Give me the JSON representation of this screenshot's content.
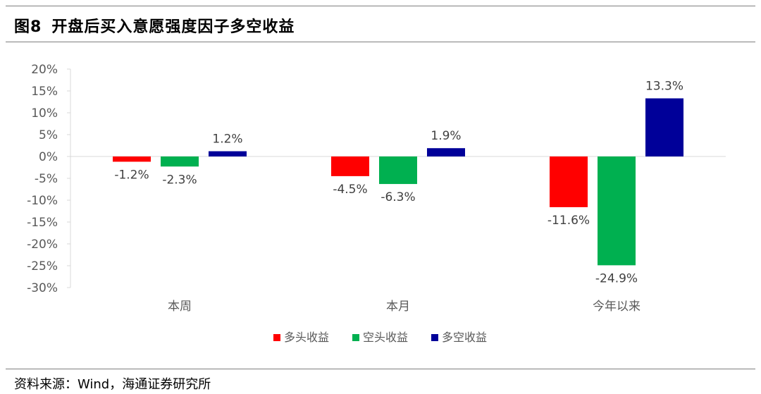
{
  "header": {
    "figure_no": "图8",
    "title": "开盘后买入意愿强度因子多空收益"
  },
  "source": "资料来源：Wind，海通证券研究所",
  "chart_data": {
    "type": "bar",
    "title": "开盘后买入意愿强度因子多空收益",
    "categories": [
      "本周",
      "本月",
      "今年以来"
    ],
    "series": [
      {
        "name": "多头收益",
        "color": "#ff0000",
        "values": [
          -1.2,
          -4.5,
          -11.6
        ],
        "labels": [
          "-1.2%",
          "-4.5%",
          "-11.6%"
        ]
      },
      {
        "name": "空头收益",
        "color": "#00b050",
        "values": [
          -2.3,
          -6.3,
          -24.9
        ],
        "labels": [
          "-2.3%",
          "-6.3%",
          "-24.9%"
        ]
      },
      {
        "name": "多空收益",
        "color": "#000099",
        "values": [
          1.2,
          1.9,
          13.3
        ],
        "labels": [
          "1.2%",
          "1.9%",
          "13.3%"
        ]
      }
    ],
    "ylim": [
      -30,
      20
    ],
    "yticks": [
      20,
      15,
      10,
      5,
      0,
      -5,
      -10,
      -15,
      -20,
      -25,
      -30
    ],
    "ytick_labels": [
      "20%",
      "15%",
      "10%",
      "5%",
      "0%",
      "-5%",
      "-10%",
      "-15%",
      "-20%",
      "-25%",
      "-30%"
    ],
    "grid": false,
    "legend": "bottom"
  }
}
